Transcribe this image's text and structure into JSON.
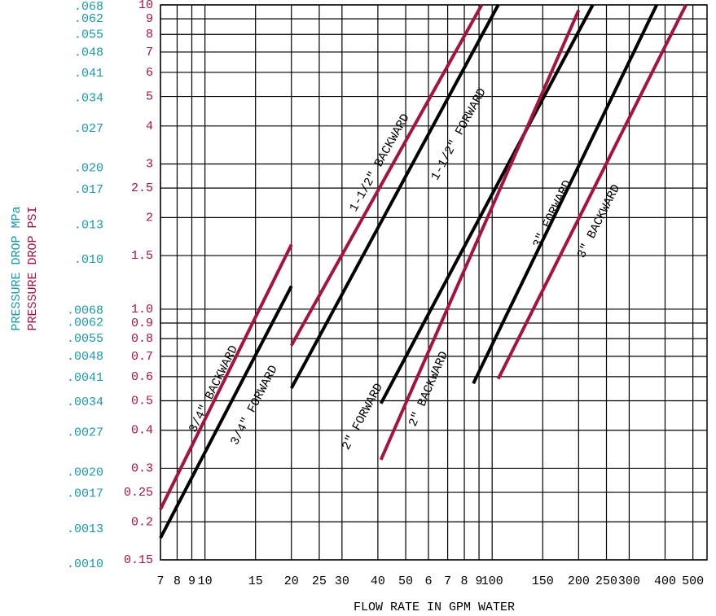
{
  "chart_data": {
    "type": "line",
    "x_label": "FLOW RATE IN GPM WATER",
    "y_label": "PRESSURE DROP PSI",
    "y2_label": "PRESSURE DROP MPa",
    "log_x": true,
    "log_y": true,
    "grid": true,
    "xlim": [
      7,
      560
    ],
    "ylim": [
      0.15,
      10
    ],
    "y2lim": [
      0.00103,
      0.0689
    ],
    "xticks": [
      7,
      8,
      9,
      10,
      15,
      20,
      25,
      30,
      40,
      50,
      {
        "value": 60,
        "label": "6"
      },
      {
        "value": 70,
        "label": "7"
      },
      {
        "value": 80,
        "label": "8"
      },
      {
        "value": 90,
        "label": "9"
      },
      100,
      150,
      200,
      250,
      300,
      400,
      500
    ],
    "yticks": [
      10,
      9,
      8,
      7,
      6,
      5,
      4,
      3,
      2.5,
      2,
      1.5,
      {
        "value": 1,
        "label": "1.0"
      },
      0.9,
      0.8,
      0.7,
      0.6,
      0.5,
      0.4,
      0.3,
      0.25,
      0.2,
      0.15
    ],
    "y2ticks": [
      {
        "value": 0.068,
        "label": ".068"
      },
      {
        "value": 0.062,
        "label": ".062"
      },
      {
        "value": 0.055,
        "label": ".055"
      },
      {
        "value": 0.048,
        "label": ".048"
      },
      {
        "value": 0.041,
        "label": ".041"
      },
      {
        "value": 0.034,
        "label": ".034"
      },
      {
        "value": 0.027,
        "label": ".027"
      },
      {
        "value": 0.02,
        "label": ".020"
      },
      {
        "value": 0.017,
        "label": ".017"
      },
      {
        "value": 0.013,
        "label": ".013"
      },
      {
        "value": 0.01,
        "label": ".010"
      },
      {
        "value": 0.0068,
        "label": ".0068"
      },
      {
        "value": 0.0062,
        "label": ".0062"
      },
      {
        "value": 0.0055,
        "label": ".0055"
      },
      {
        "value": 0.0048,
        "label": ".0048"
      },
      {
        "value": 0.0041,
        "label": ".0041"
      },
      {
        "value": 0.0034,
        "label": ".0034"
      },
      {
        "value": 0.0027,
        "label": ".0027"
      },
      {
        "value": 0.002,
        "label": ".0020"
      },
      {
        "value": 0.0017,
        "label": ".0017"
      },
      {
        "value": 0.0013,
        "label": ".0013"
      },
      {
        "value": 0.001,
        "label": ".0010"
      }
    ],
    "y_color": "#a3153f",
    "y2_color": "#1a98a6",
    "series": [
      {
        "name": "3/4\" BACKWARD",
        "color": "#a3153f",
        "x": [
          7,
          20
        ],
        "values": [
          0.22,
          1.63
        ]
      },
      {
        "name": "3/4\" FORWARD",
        "color": "#000000",
        "x": [
          7,
          20
        ],
        "values": [
          0.177,
          1.19
        ]
      },
      {
        "name": "1-1/2\" BACKWARD",
        "color": "#a3153f",
        "x": [
          20,
          92
        ],
        "values": [
          0.76,
          10
        ]
      },
      {
        "name": "1-1/2\" FORWARD",
        "color": "#000000",
        "x": [
          20,
          105
        ],
        "values": [
          0.55,
          10
        ]
      },
      {
        "name": "2\" FORWARD",
        "color": "#000000",
        "x": [
          41,
          224
        ],
        "values": [
          0.49,
          10
        ]
      },
      {
        "name": "2\" BACKWARD",
        "color": "#a3153f",
        "x": [
          41,
          200
        ],
        "values": [
          0.32,
          9.6
        ]
      },
      {
        "name": "3\" FORWARD",
        "color": "#000000",
        "x": [
          86,
          374
        ],
        "values": [
          0.57,
          10
        ]
      },
      {
        "name": "3\" BACKWARD",
        "color": "#a3153f",
        "x": [
          105,
          473
        ],
        "values": [
          0.59,
          10
        ]
      }
    ]
  }
}
